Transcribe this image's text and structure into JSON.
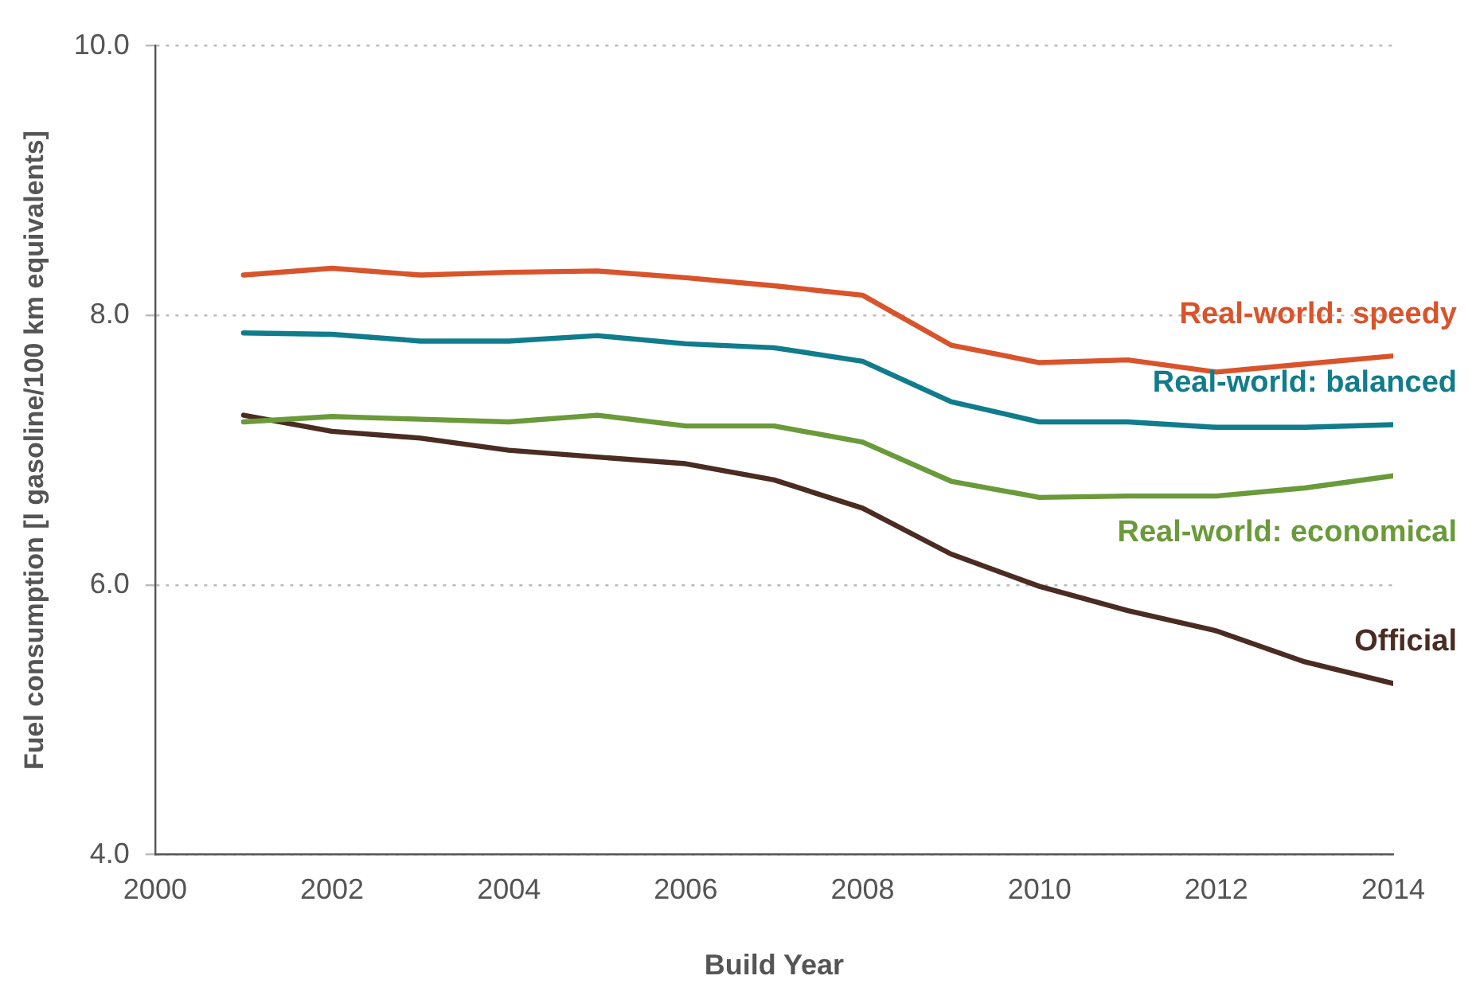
{
  "chart_data": {
    "type": "line",
    "xlabel": "Build Year",
    "ylabel": "Fuel consumption [l gasoline/100 km equivalents]",
    "x": [
      2001,
      2002,
      2003,
      2004,
      2005,
      2006,
      2007,
      2008,
      2009,
      2010,
      2011,
      2012,
      2013,
      2014
    ],
    "series": [
      {
        "name": "Real-world: speedy",
        "color": "#d9532b",
        "values": [
          8.3,
          8.35,
          8.3,
          8.32,
          8.33,
          8.28,
          8.22,
          8.15,
          7.78,
          7.65,
          7.67,
          7.58,
          7.64,
          7.7
        ]
      },
      {
        "name": "Real-world: balanced",
        "color": "#107c8c",
        "values": [
          7.87,
          7.86,
          7.81,
          7.81,
          7.85,
          7.79,
          7.76,
          7.66,
          7.36,
          7.21,
          7.21,
          7.17,
          7.17,
          7.19
        ]
      },
      {
        "name": "Real-world: economical",
        "color": "#6a9a3a",
        "values": [
          7.21,
          7.25,
          7.23,
          7.21,
          7.26,
          7.18,
          7.18,
          7.06,
          6.77,
          6.65,
          6.66,
          6.66,
          6.72,
          6.81
        ]
      },
      {
        "name": "Official",
        "color": "#4a2c22",
        "values": [
          7.26,
          7.14,
          7.09,
          7.0,
          6.95,
          6.9,
          6.78,
          6.57,
          6.23,
          5.99,
          5.81,
          5.66,
          5.43,
          5.27
        ]
      }
    ],
    "xlim": [
      2000,
      2014
    ],
    "xticks": [
      2000,
      2002,
      2004,
      2006,
      2008,
      2010,
      2012,
      2014
    ],
    "ylim": [
      4,
      10
    ],
    "yticks": [
      {
        "value": 4,
        "label": "4.0"
      },
      {
        "value": 6,
        "label": "6.0"
      },
      {
        "value": 8,
        "label": "8.0"
      },
      {
        "value": 10,
        "label": "10.0"
      }
    ],
    "grid": "y",
    "legend": false,
    "marker": "none",
    "line_style": "solid"
  }
}
